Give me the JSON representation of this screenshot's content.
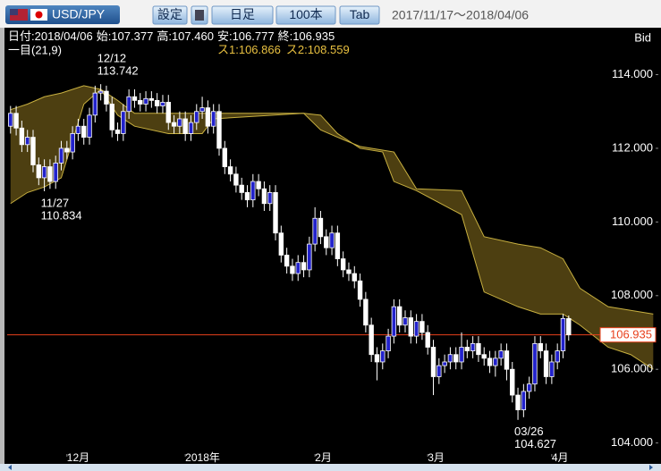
{
  "toolbar": {
    "symbol": "USD/JPY",
    "buttons": [
      "設定",
      "日足",
      "100本",
      "Tab"
    ],
    "range": "2017/11/17～2018/04/06"
  },
  "header": {
    "date_label": "日付:",
    "date": "2018/04/06",
    "open_label": "始:",
    "open": "107.377",
    "high_label": "高:",
    "high": "107.460",
    "low_label": "安:",
    "low": "106.777",
    "close_label": "終:",
    "close": "106.935",
    "price_type": "Bid",
    "indicator": "一目(21,9)",
    "span1_label": "ス1:",
    "span1": 106.866,
    "span2_label": "ス2:",
    "span2": 108.559
  },
  "chart_data": {
    "type": "candlestick",
    "open": [
      112.6,
      112.95,
      112.55,
      112.1,
      112.3,
      111.55,
      111.2,
      111.5,
      111.1,
      111.6,
      112.0,
      111.9,
      112.4,
      112.6,
      112.3,
      112.9,
      113.5,
      113.55,
      113.2,
      112.5,
      112.4,
      113.0,
      113.4,
      113.3,
      113.2,
      113.35,
      113.3,
      113.15,
      113.25,
      112.7,
      112.6,
      112.8,
      112.4,
      112.7,
      113.0,
      113.1,
      112.6,
      113.0,
      112.0,
      111.5,
      111.3,
      111.0,
      110.8,
      110.6,
      111.1,
      110.9,
      110.5,
      110.8,
      109.7,
      109.1,
      108.8,
      108.6,
      108.9,
      108.7,
      109.4,
      110.1,
      109.6,
      109.3,
      109.7,
      109.0,
      108.7,
      108.6,
      108.4,
      107.9,
      107.2,
      106.4,
      106.2,
      106.5,
      106.9,
      107.7,
      107.2,
      107.4,
      106.9,
      107.3,
      107.0,
      106.6,
      105.8,
      106.1,
      106.2,
      106.4,
      106.2,
      106.6,
      106.5,
      106.7,
      106.4,
      106.3,
      106.1,
      106.3,
      106.5,
      106.0,
      105.3,
      104.9,
      105.4,
      105.6,
      106.7,
      106.5,
      105.8,
      106.2,
      106.5,
      107.377
    ],
    "high": [
      113.15,
      113.15,
      112.75,
      112.5,
      112.5,
      111.75,
      111.7,
      111.7,
      111.8,
      112.2,
      112.2,
      112.6,
      112.8,
      112.8,
      113.1,
      113.7,
      113.742,
      113.7,
      113.4,
      112.7,
      113.2,
      113.6,
      113.6,
      113.5,
      113.55,
      113.55,
      113.5,
      113.45,
      113.45,
      112.9,
      113.0,
      113.0,
      112.9,
      113.2,
      113.4,
      113.3,
      113.2,
      113.2,
      112.2,
      111.7,
      111.5,
      111.2,
      111.0,
      111.3,
      111.3,
      111.1,
      111.0,
      111.0,
      109.9,
      109.3,
      109.0,
      109.1,
      109.1,
      109.6,
      110.4,
      110.3,
      109.8,
      109.9,
      109.9,
      109.2,
      108.9,
      108.8,
      108.6,
      108.1,
      107.4,
      106.6,
      106.7,
      107.1,
      107.9,
      107.9,
      107.6,
      107.6,
      107.5,
      107.5,
      107.2,
      106.8,
      106.3,
      106.4,
      106.6,
      106.6,
      107.0,
      106.8,
      106.9,
      106.9,
      106.6,
      106.5,
      106.5,
      106.7,
      106.7,
      106.2,
      105.5,
      105.6,
      105.8,
      106.9,
      106.9,
      106.7,
      106.4,
      106.7,
      107.5,
      107.46
    ],
    "low": [
      112.4,
      112.35,
      111.9,
      111.9,
      111.35,
      111.0,
      110.834,
      110.9,
      110.9,
      111.4,
      111.7,
      111.7,
      112.2,
      112.1,
      112.1,
      112.7,
      113.3,
      113.0,
      112.3,
      112.2,
      112.2,
      112.8,
      113.1,
      113.0,
      113.0,
      113.1,
      112.95,
      112.95,
      112.5,
      112.4,
      112.4,
      112.2,
      112.2,
      112.5,
      112.8,
      112.4,
      112.4,
      111.8,
      111.3,
      111.1,
      110.8,
      110.6,
      110.4,
      110.4,
      110.7,
      110.3,
      110.3,
      109.5,
      108.9,
      108.6,
      108.4,
      108.4,
      108.5,
      108.5,
      109.2,
      109.4,
      109.1,
      109.1,
      108.8,
      108.5,
      108.4,
      108.2,
      107.7,
      107.0,
      106.2,
      105.7,
      106.0,
      106.3,
      106.7,
      107.0,
      107.0,
      106.7,
      106.7,
      106.8,
      106.4,
      105.3,
      105.6,
      105.9,
      106.0,
      106.0,
      106.0,
      106.3,
      106.3,
      106.2,
      106.1,
      105.9,
      105.8,
      106.1,
      105.7,
      105.1,
      104.627,
      104.7,
      105.2,
      105.4,
      106.3,
      105.6,
      105.6,
      106.0,
      106.3,
      106.777
    ],
    "close": [
      112.95,
      112.55,
      112.1,
      112.3,
      111.55,
      111.2,
      111.5,
      111.1,
      111.6,
      112.0,
      111.9,
      112.4,
      112.6,
      112.3,
      112.9,
      113.5,
      113.55,
      113.2,
      112.5,
      112.4,
      113.0,
      113.4,
      113.3,
      113.2,
      113.35,
      113.3,
      113.15,
      113.25,
      112.7,
      112.6,
      112.8,
      112.4,
      112.7,
      113.0,
      113.1,
      112.6,
      113.0,
      112.0,
      111.5,
      111.3,
      111.0,
      110.8,
      110.6,
      111.1,
      110.9,
      110.5,
      110.8,
      109.7,
      109.1,
      108.8,
      108.6,
      108.9,
      108.7,
      109.4,
      110.1,
      109.6,
      109.3,
      109.7,
      109.0,
      108.7,
      108.6,
      108.4,
      107.9,
      107.2,
      106.4,
      106.2,
      106.5,
      106.9,
      107.7,
      107.2,
      107.4,
      106.9,
      107.3,
      107.0,
      106.6,
      105.8,
      106.1,
      106.2,
      106.4,
      106.2,
      106.6,
      106.5,
      106.7,
      106.4,
      106.3,
      106.1,
      106.3,
      106.5,
      106.0,
      105.3,
      104.9,
      105.4,
      105.6,
      106.7,
      106.5,
      105.8,
      106.2,
      106.5,
      107.38,
      106.935
    ],
    "up_color": "#2222cc",
    "down_color": "#ffffff",
    "xlim": [
      -0.6,
      114.9
    ],
    "xticks": [
      {
        "value": 10,
        "label": "12月"
      },
      {
        "value": 31,
        "label": "2018年"
      },
      {
        "value": 54,
        "label": "2月"
      },
      {
        "value": 74,
        "label": "3月"
      },
      {
        "value": 96,
        "label": "4月"
      }
    ],
    "ylim": [
      103.7,
      115.25
    ],
    "yticks": [
      {
        "value": 104,
        "label": "104.000"
      },
      {
        "value": 106,
        "label": "106.000"
      },
      {
        "value": 108,
        "label": "108.000"
      },
      {
        "value": 110,
        "label": "110.000"
      },
      {
        "value": 112,
        "label": "112.000"
      },
      {
        "value": 114,
        "label": "114.000"
      }
    ],
    "cloud": {
      "x": [
        0,
        3,
        6,
        9,
        11,
        13,
        16,
        19,
        22,
        28,
        34,
        36,
        52,
        55,
        58,
        62,
        66,
        68,
        72,
        80,
        84,
        90,
        94,
        98,
        101,
        106,
        110,
        114
      ],
      "span_a": [
        113.05,
        113.2,
        113.4,
        113.5,
        113.6,
        113.7,
        113.6,
        112.9,
        112.6,
        112.4,
        112.4,
        112.8,
        112.95,
        112.5,
        112.3,
        112.05,
        111.95,
        111.9,
        110.9,
        110.85,
        109.6,
        109.4,
        109.3,
        109.0,
        108.2,
        107.7,
        107.6,
        107.5
      ],
      "span_b": [
        110.5,
        110.8,
        110.95,
        111.2,
        112.2,
        113.2,
        113.6,
        113.3,
        112.95,
        112.95,
        112.95,
        112.95,
        112.95,
        112.9,
        112.4,
        112.0,
        111.9,
        111.1,
        110.85,
        110.2,
        108.1,
        107.7,
        107.5,
        107.5,
        107.2,
        106.6,
        106.4,
        106.0
      ],
      "fill": "#5a4a14",
      "line_color": "#c8b040"
    },
    "price_line_color": "#e8401c",
    "annotations": [
      {
        "date": "12/12",
        "value": 113.742
      },
      {
        "date": "11/27",
        "value": 110.834
      },
      {
        "date": "03/26",
        "value": 104.627
      }
    ]
  }
}
